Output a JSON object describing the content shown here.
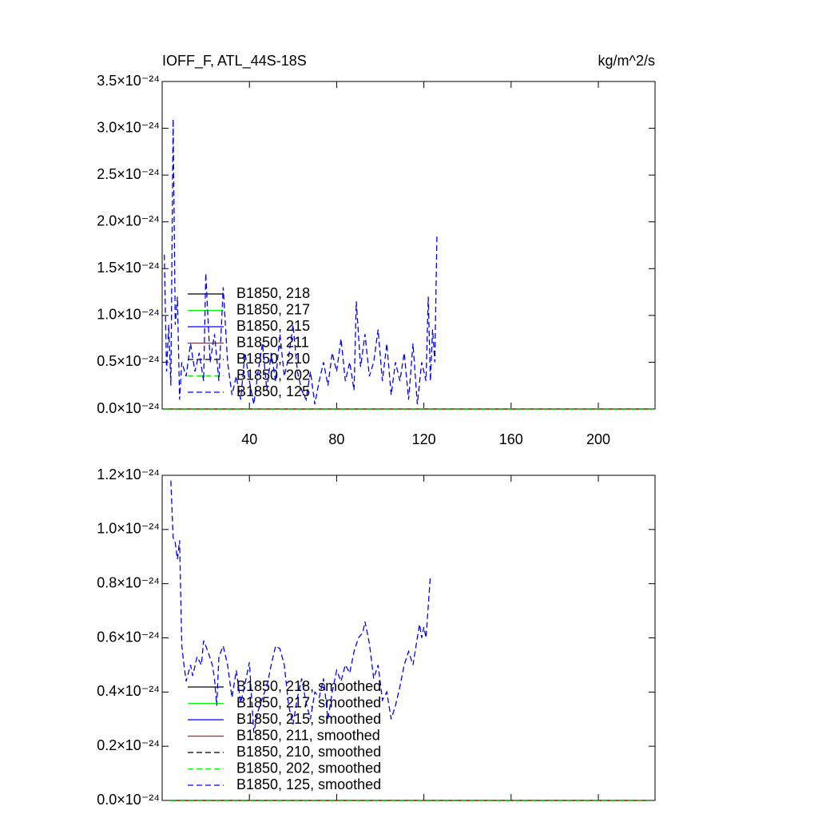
{
  "chart_data": [
    {
      "type": "line",
      "title": "IOFF_F, ATL_44S-18S",
      "units_label": "kg/m^2/s",
      "xlim": [
        0,
        226
      ],
      "xticks": [
        40,
        80,
        120,
        160,
        200
      ],
      "ylim": [
        0,
        3.5e-24
      ],
      "yticks": [
        {
          "value": 0,
          "label": "0.0×10⁻²⁴"
        },
        {
          "value": 5e-25,
          "label": "0.5×10⁻²⁴"
        },
        {
          "value": 1e-24,
          "label": "1.0×10⁻²⁴"
        },
        {
          "value": 1.5e-24,
          "label": "1.5×10⁻²⁴"
        },
        {
          "value": 2e-24,
          "label": "2.0×10⁻²⁴"
        },
        {
          "value": 2.5e-24,
          "label": "2.5×10⁻²⁴"
        },
        {
          "value": 3e-24,
          "label": "3.0×10⁻²⁴"
        },
        {
          "value": 3.5e-24,
          "label": "3.5×10⁻²⁴"
        }
      ],
      "series": [
        {
          "name": "B1850, 218",
          "color": "#000000",
          "dashed": false,
          "x": [
            1,
            225
          ],
          "values": [
            0,
            0
          ]
        },
        {
          "name": "B1850, 217",
          "color": "#00ff00",
          "dashed": false,
          "x": [
            1,
            225
          ],
          "values": [
            0,
            0
          ]
        },
        {
          "name": "B1850, 215",
          "color": "#0000ff",
          "dashed": false,
          "x": [
            1,
            225
          ],
          "values": [
            0,
            0
          ]
        },
        {
          "name": "B1850, 211",
          "color": "#ff0000",
          "dashed": false,
          "x": [
            1,
            225
          ],
          "values": [
            0,
            0
          ]
        },
        {
          "name": "B1850, 210",
          "color": "#000000",
          "dashed": true,
          "x": [
            1,
            225
          ],
          "values": [
            0,
            0
          ]
        },
        {
          "name": "B1850, 202",
          "color": "#00ff00",
          "dashed": true,
          "x": [
            1,
            225
          ],
          "values": [
            0,
            0
          ]
        },
        {
          "name": "B1850, 125",
          "color": "#0000ff",
          "dashed": true,
          "x": [
            1,
            2,
            3,
            4,
            5,
            6,
            7,
            8,
            9,
            11,
            13,
            15,
            17,
            19,
            20,
            22,
            24,
            26,
            28,
            30,
            32,
            34,
            36,
            38,
            40,
            42,
            44,
            46,
            48,
            50,
            52,
            54,
            56,
            58,
            60,
            62,
            64,
            66,
            68,
            70,
            72,
            74,
            76,
            78,
            80,
            82,
            84,
            86,
            88,
            89,
            91,
            93,
            95,
            97,
            99,
            101,
            103,
            105,
            107,
            109,
            111,
            113,
            115,
            117,
            119,
            121,
            122,
            123,
            124,
            125,
            126
          ],
          "values": [
            1.65e-24,
            4e-25,
            9e-25,
            2.5e-25,
            3.1e-24,
            9e-25,
            1.2e-24,
            1e-25,
            5e-25,
            3.5e-25,
            7e-25,
            4e-25,
            6e-25,
            3e-25,
            1.45e-24,
            5e-25,
            8e-25,
            3e-25,
            1.3e-24,
            5e-25,
            1.5e-25,
            3.5e-25,
            1e-25,
            6e-25,
            3e-25,
            5e-26,
            4e-25,
            7e-25,
            2e-25,
            6e-25,
            3e-25,
            8e-25,
            3.5e-25,
            5.5e-25,
            9e-25,
            4e-25,
            2e-25,
            1e-25,
            4e-25,
            5e-26,
            3e-25,
            5e-25,
            2.5e-25,
            6e-25,
            4e-25,
            7.5e-25,
            3e-25,
            5e-25,
            2e-25,
            1.15e-24,
            4.5e-25,
            8e-25,
            3.5e-25,
            5e-25,
            8.5e-25,
            3e-25,
            7e-25,
            1.5e-25,
            5e-25,
            3e-25,
            6e-25,
            1e-25,
            7e-25,
            5e-26,
            5e-25,
            3e-25,
            1.2e-24,
            3e-25,
            8.5e-25,
            5e-25,
            1.88e-24
          ]
        }
      ]
    },
    {
      "type": "line",
      "xlim": [
        0,
        226
      ],
      "xticks": [
        40,
        80,
        120,
        160,
        200
      ],
      "ylim": [
        0,
        1.2e-24
      ],
      "yticks": [
        {
          "value": 0,
          "label": "0.0×10⁻²⁴"
        },
        {
          "value": 2e-25,
          "label": "0.2×10⁻²⁴"
        },
        {
          "value": 4e-25,
          "label": "0.4×10⁻²⁴"
        },
        {
          "value": 6e-25,
          "label": "0.6×10⁻²⁴"
        },
        {
          "value": 8e-25,
          "label": "0.8×10⁻²⁴"
        },
        {
          "value": 1e-24,
          "label": "1.0×10⁻²⁴"
        },
        {
          "value": 1.2e-24,
          "label": "1.2×10⁻²⁴"
        }
      ],
      "series": [
        {
          "name": "B1850, 218, smoothed",
          "color": "#000000",
          "dashed": false,
          "x": [
            4,
            223
          ],
          "values": [
            0,
            0
          ]
        },
        {
          "name": "B1850, 217, smoothed",
          "color": "#00ff00",
          "dashed": false,
          "x": [
            4,
            223
          ],
          "values": [
            0,
            0
          ]
        },
        {
          "name": "B1850, 215, smoothed",
          "color": "#0000ff",
          "dashed": false,
          "x": [
            4,
            223
          ],
          "values": [
            0,
            0
          ]
        },
        {
          "name": "B1850, 211, smoothed",
          "color": "#ff0000",
          "dashed": false,
          "x": [
            4,
            223
          ],
          "values": [
            0,
            0
          ]
        },
        {
          "name": "B1850, 210, smoothed",
          "color": "#000000",
          "dashed": true,
          "x": [
            4,
            223
          ],
          "values": [
            0,
            0
          ]
        },
        {
          "name": "B1850, 202, smoothed",
          "color": "#00ff00",
          "dashed": true,
          "x": [
            4,
            223
          ],
          "values": [
            0,
            0
          ]
        },
        {
          "name": "B1850, 125, smoothed",
          "color": "#0000ff",
          "dashed": true,
          "x": [
            4,
            5,
            6,
            7,
            8,
            9,
            10,
            11,
            13,
            14,
            16,
            18,
            19,
            21,
            23,
            24,
            25,
            26,
            28,
            30,
            32,
            34,
            36,
            38,
            40,
            41,
            42,
            44,
            46,
            48,
            50,
            52,
            54,
            56,
            58,
            60,
            62,
            64,
            66,
            68,
            70,
            72,
            74,
            76,
            78,
            80,
            82,
            84,
            86,
            88,
            90,
            92,
            93,
            95,
            97,
            99,
            101,
            103,
            105,
            107,
            109,
            111,
            113,
            115,
            117,
            118,
            119,
            120,
            121,
            123
          ],
          "values": [
            1.18e-24,
            9.7e-25,
            9.5e-25,
            8.9e-25,
            9.6e-25,
            5.7e-25,
            5e-25,
            4.4e-25,
            5e-25,
            4.6e-25,
            5.3e-25,
            5e-25,
            5.9e-25,
            5.5e-25,
            5e-25,
            4.5e-25,
            3.5e-25,
            5.3e-25,
            5.7e-25,
            5e-25,
            3.8e-25,
            4.8e-25,
            3.6e-25,
            4.3e-25,
            5.1e-25,
            3.8e-25,
            2.5e-25,
            3.3e-25,
            3.8e-25,
            4.2e-25,
            5e-25,
            5.7e-25,
            5.6e-25,
            5e-25,
            3.5e-25,
            2.8e-25,
            3.8e-25,
            4.5e-25,
            3.6e-25,
            3e-25,
            4e-25,
            3.8e-25,
            4.5e-25,
            3e-25,
            4e-25,
            4.8e-25,
            4.4e-25,
            5e-25,
            4.7e-25,
            5.5e-25,
            6e-25,
            6.2e-25,
            6.6e-25,
            5.8e-25,
            4.5e-25,
            5e-25,
            3.7e-25,
            4e-25,
            3e-25,
            3.5e-25,
            4.2e-25,
            5e-25,
            5.5e-25,
            5e-25,
            6e-25,
            6.5e-25,
            6e-25,
            6.4e-25,
            6e-25,
            8.3e-25
          ]
        }
      ]
    }
  ]
}
